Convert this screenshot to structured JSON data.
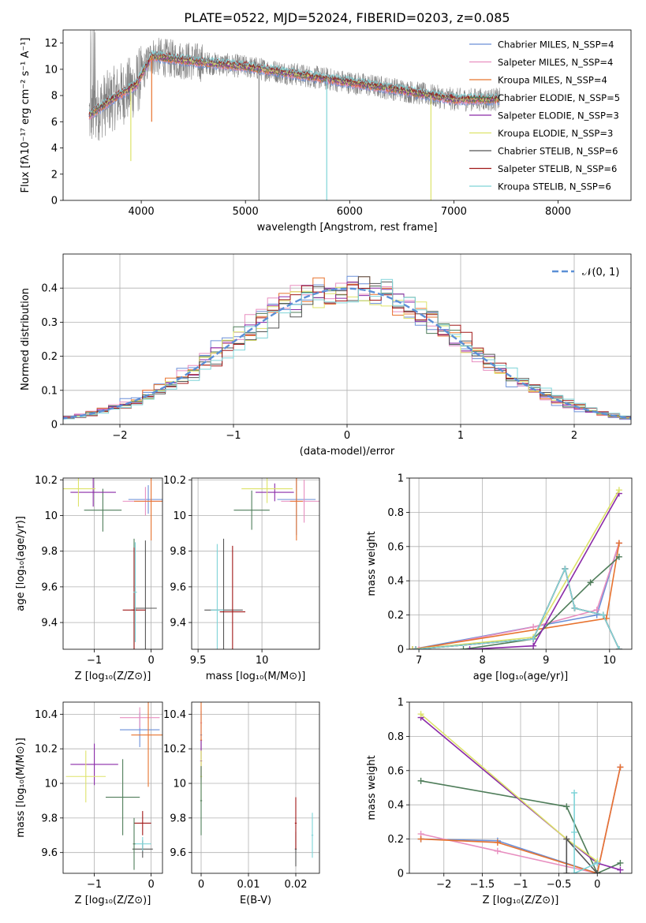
{
  "figure_title": "PLATE=0522, MJD=52024, FIBERID=0203, z=0.085",
  "series_colors": [
    "#6a8fd8",
    "#e88fc0",
    "#e8732f",
    "#4f7d5a",
    "#8a2aa8",
    "#dde36a",
    "#555555",
    "#a01818",
    "#7fd4d8"
  ],
  "chart_data": [
    {
      "id": "spectrum",
      "type": "line",
      "xlabel": "wavelength [Angstrom, rest frame]",
      "ylabel": "Flux [fλ10⁻¹⁷ erg cm⁻² s⁻¹ A⁻¹]",
      "xlim": [
        3250,
        8700
      ],
      "ylim": [
        0,
        13
      ],
      "xticks": [
        4000,
        5000,
        6000,
        7000,
        8000
      ],
      "yticks": [
        0,
        2,
        4,
        6,
        8,
        10,
        12
      ],
      "grid": false,
      "legend": "top-right",
      "series": [
        {
          "name": "Chabrier MILES, N_SSP=4"
        },
        {
          "name": "Salpeter MILES, N_SSP=4"
        },
        {
          "name": "Kroupa MILES, N_SSP=4"
        },
        {
          "name": "Chabrier ELODIE, N_SSP=5"
        },
        {
          "name": "Salpeter ELODIE, N_SSP=3"
        },
        {
          "name": "Kroupa ELODIE, N_SSP=3"
        },
        {
          "name": "Chabrier STELIB, N_SSP=6"
        },
        {
          "name": "Salpeter STELIB, N_SSP=6"
        },
        {
          "name": "Kroupa STELIB, N_SSP=6"
        }
      ],
      "continuum": {
        "x": [
          3500,
          3700,
          3950,
          4100,
          4300,
          4600,
          5000,
          5500,
          6000,
          6500,
          7000,
          7400
        ],
        "y": [
          6.5,
          7.6,
          8.8,
          11.0,
          10.8,
          10.5,
          10.2,
          9.6,
          9.0,
          8.4,
          7.7,
          7.7
        ]
      }
    },
    {
      "id": "residuals",
      "type": "line",
      "xlabel": "(data-model)/error",
      "ylabel": "Normed distribution",
      "xlim": [
        -2.5,
        2.5
      ],
      "ylim": [
        0,
        0.5
      ],
      "xticks": [
        -2,
        -1,
        0,
        1,
        2
      ],
      "yticks": [
        0.0,
        0.1,
        0.2,
        0.3,
        0.4
      ],
      "grid": true,
      "legend": "top-right",
      "gaussian": {
        "name": "𝒩(0, 1)"
      }
    },
    {
      "id": "age_vs_Z",
      "type": "scatter",
      "xlabel": "Z [log₁₀(Z/Z⊙)]",
      "ylabel": "age  [log₁₀(age/yr)]",
      "xlim": [
        -1.55,
        0.2
      ],
      "ylim": [
        9.25,
        10.21
      ],
      "xticks": [
        -1,
        0
      ],
      "yticks": [
        9.4,
        9.6,
        9.8,
        10.0,
        10.2
      ],
      "grid": true,
      "points": [
        {
          "s": 0,
          "x": -0.05,
          "y": 10.09,
          "ex": 0.35,
          "ey": 0.08
        },
        {
          "s": 1,
          "x": -0.1,
          "y": 10.08,
          "ex": 0.4,
          "ey": 0.08
        },
        {
          "s": 2,
          "x": 0.0,
          "y": 10.08,
          "ex": 0.3,
          "ey": 0.22
        },
        {
          "s": 3,
          "x": -0.85,
          "y": 10.03,
          "ex": 0.33,
          "ey": 0.12
        },
        {
          "s": 4,
          "x": -1.02,
          "y": 10.13,
          "ex": 0.4,
          "ey": 0.08
        },
        {
          "s": 5,
          "x": -1.28,
          "y": 10.15,
          "ex": 0.3,
          "ey": 0.1
        },
        {
          "s": 6,
          "x": -0.1,
          "y": 9.48,
          "ex": 0.2,
          "ey": 0.38
        },
        {
          "s": 3,
          "x": -0.3,
          "y": 9.47,
          "ex": 0.05,
          "ey": 0.4
        },
        {
          "s": 7,
          "x": -0.3,
          "y": 9.47,
          "ex": 0.2,
          "ey": 0.35
        },
        {
          "s": 8,
          "x": -0.28,
          "y": 9.57,
          "ex": 0.03,
          "ey": 0.28
        }
      ]
    },
    {
      "id": "age_vs_mass",
      "type": "scatter",
      "xlabel": "mass [log₁₀(M/M⊙)]",
      "ylabel": "",
      "xlim": [
        9.45,
        10.45
      ],
      "ylim": [
        9.25,
        10.21
      ],
      "xticks": [
        9.5,
        10.0
      ],
      "yticks": [
        9.4,
        9.6,
        9.8,
        10.0,
        10.2
      ],
      "grid": true,
      "points": [
        {
          "s": 0,
          "x": 10.27,
          "y": 10.09,
          "ex": 0.15,
          "ey": 0.2
        },
        {
          "s": 1,
          "x": 10.33,
          "y": 10.08,
          "ex": 0.18,
          "ey": 0.12
        },
        {
          "s": 2,
          "x": 10.27,
          "y": 10.08,
          "ex": 0.05,
          "ey": 0.22
        },
        {
          "s": 3,
          "x": 9.92,
          "y": 10.03,
          "ex": 0.14,
          "ey": 0.11
        },
        {
          "s": 4,
          "x": 10.1,
          "y": 10.13,
          "ex": 0.15,
          "ey": 0.05
        },
        {
          "s": 5,
          "x": 10.04,
          "y": 10.15,
          "ex": 0.2,
          "ey": 0.08
        },
        {
          "s": 6,
          "x": 9.7,
          "y": 9.47,
          "ex": 0.15,
          "ey": 0.4
        },
        {
          "s": 7,
          "x": 9.77,
          "y": 9.46,
          "ex": 0.1,
          "ey": 0.37
        },
        {
          "s": 8,
          "x": 9.65,
          "y": 9.47,
          "ex": 0.05,
          "ey": 0.37
        }
      ]
    },
    {
      "id": "mass_weight_vs_age",
      "type": "line",
      "xlabel": "age  [log₁₀(age/yr)]",
      "ylabel": "mass weight",
      "xlim": [
        6.85,
        10.35
      ],
      "ylim": [
        0,
        1
      ],
      "xticks": [
        7,
        8,
        9,
        10
      ],
      "yticks": [
        0.0,
        0.2,
        0.4,
        0.6,
        0.8,
        1.0
      ],
      "grid": true,
      "lines": [
        {
          "s": 0,
          "x": [
            6.9,
            9.8,
            10.15
          ],
          "y": [
            0.0,
            0.2,
            0.62
          ]
        },
        {
          "s": 1,
          "x": [
            7.0,
            8.8,
            9.8,
            10.15
          ],
          "y": [
            0.0,
            0.13,
            0.23,
            0.62
          ]
        },
        {
          "s": 2,
          "x": [
            6.9,
            9.95,
            10.15
          ],
          "y": [
            0.0,
            0.18,
            0.62
          ]
        },
        {
          "s": 3,
          "x": [
            7.7,
            8.8,
            9.7,
            10.15
          ],
          "y": [
            0.0,
            0.06,
            0.39,
            0.54
          ]
        },
        {
          "s": 4,
          "x": [
            7.8,
            8.8,
            10.15
          ],
          "y": [
            0.0,
            0.02,
            0.91
          ]
        },
        {
          "s": 5,
          "x": [
            6.9,
            8.8,
            10.15
          ],
          "y": [
            0.0,
            0.07,
            0.93
          ]
        },
        {
          "s": 6,
          "x": [
            6.95,
            8.8,
            9.3,
            9.45,
            9.9,
            10.15
          ],
          "y": [
            0.0,
            0.06,
            0.47,
            0.24,
            0.2,
            0.0
          ]
        },
        {
          "s": 7,
          "x": [
            6.95,
            8.8,
            9.3,
            9.45,
            9.9,
            10.15
          ],
          "y": [
            0.0,
            0.06,
            0.47,
            0.24,
            0.2,
            0.0
          ]
        },
        {
          "s": 8,
          "x": [
            6.95,
            8.8,
            9.3,
            9.45,
            9.9,
            10.15
          ],
          "y": [
            0.0,
            0.06,
            0.47,
            0.24,
            0.2,
            0.0
          ]
        }
      ]
    },
    {
      "id": "mass_vs_Z",
      "type": "scatter",
      "xlabel": "Z [log₁₀(Z/Z⊙)]",
      "ylabel": "mass [log₁₀(M/M⊙)]",
      "xlim": [
        -1.55,
        0.2
      ],
      "ylim": [
        9.48,
        10.47
      ],
      "xticks": [
        -1,
        0
      ],
      "yticks": [
        9.6,
        9.8,
        10.0,
        10.2,
        10.4
      ],
      "grid": true,
      "points": [
        {
          "s": 0,
          "x": -0.2,
          "y": 10.31,
          "ex": 0.35,
          "ey": 0.1
        },
        {
          "s": 1,
          "x": -0.2,
          "y": 10.38,
          "ex": 0.35,
          "ey": 0.06
        },
        {
          "s": 2,
          "x": -0.05,
          "y": 10.28,
          "ex": 0.3,
          "ey": 0.3
        },
        {
          "s": 3,
          "x": -0.5,
          "y": 9.92,
          "ex": 0.3,
          "ey": 0.22
        },
        {
          "s": 4,
          "x": -1.0,
          "y": 10.11,
          "ex": 0.42,
          "ey": 0.12
        },
        {
          "s": 5,
          "x": -1.15,
          "y": 10.04,
          "ex": 0.35,
          "ey": 0.15
        },
        {
          "s": 6,
          "x": -0.15,
          "y": 9.62,
          "ex": 0.18,
          "ey": 0.05
        },
        {
          "s": 7,
          "x": -0.15,
          "y": 9.77,
          "ex": 0.15,
          "ey": 0.07
        },
        {
          "s": 8,
          "x": -0.15,
          "y": 9.65,
          "ex": 0.15,
          "ey": 0.04
        },
        {
          "s": 3,
          "x": -0.3,
          "y": 9.65,
          "ex": 0.02,
          "ey": 0.15
        }
      ]
    },
    {
      "id": "mass_vs_EBV",
      "type": "scatter",
      "xlabel": "E(B-V)",
      "ylabel": "",
      "xlim": [
        -0.002,
        0.025
      ],
      "ylim": [
        9.48,
        10.47
      ],
      "xticks": [
        0.0,
        0.01,
        0.02
      ],
      "yticks": [
        9.6,
        9.8,
        10.0,
        10.2,
        10.4
      ],
      "grid": true,
      "points": [
        {
          "s": 0,
          "x": 0.0,
          "y": 10.28,
          "ex": 0.0002,
          "ey": 0.14
        },
        {
          "s": 1,
          "x": 0.0,
          "y": 10.35,
          "ex": 0.0002,
          "ey": 0.1
        },
        {
          "s": 2,
          "x": 0.0,
          "y": 10.25,
          "ex": 0.0002,
          "ey": 0.22
        },
        {
          "s": 4,
          "x": 0.0,
          "y": 10.13,
          "ex": 0.0002,
          "ey": 0.12
        },
        {
          "s": 5,
          "x": 0.0,
          "y": 10.04,
          "ex": 0.0002,
          "ey": 0.15
        },
        {
          "s": 3,
          "x": 0.0,
          "y": 9.9,
          "ex": 0.0002,
          "ey": 0.2
        },
        {
          "s": 6,
          "x": 0.02,
          "y": 9.62,
          "ex": 0.0002,
          "ey": 0.1
        },
        {
          "s": 7,
          "x": 0.02,
          "y": 9.77,
          "ex": 0.0002,
          "ey": 0.15
        },
        {
          "s": 8,
          "x": 0.0235,
          "y": 9.7,
          "ex": 0.0002,
          "ey": 0.13
        }
      ]
    },
    {
      "id": "mass_weight_vs_Z",
      "type": "line",
      "xlabel": "Z [log₁₀(Z/Z⊙)]",
      "ylabel": "mass weight",
      "xlim": [
        -2.45,
        0.45
      ],
      "ylim": [
        0,
        1
      ],
      "xticks": [
        -2.0,
        -1.5,
        -1.0,
        -0.5,
        0.0
      ],
      "yticks": [
        0.0,
        0.2,
        0.4,
        0.6,
        0.8,
        1.0
      ],
      "grid": true,
      "lines": [
        {
          "s": 0,
          "x": [
            -2.3,
            -1.3,
            0.0,
            0.3
          ],
          "y": [
            0.2,
            0.19,
            0.0,
            0.62
          ]
        },
        {
          "s": 1,
          "x": [
            -2.3,
            -1.3,
            0.0,
            0.3
          ],
          "y": [
            0.23,
            0.13,
            0.0,
            0.62
          ]
        },
        {
          "s": 2,
          "x": [
            -2.3,
            -1.3,
            0.0,
            0.3
          ],
          "y": [
            0.2,
            0.18,
            0.0,
            0.62
          ]
        },
        {
          "s": 3,
          "x": [
            -2.3,
            -0.4,
            0.0,
            0.3
          ],
          "y": [
            0.54,
            0.39,
            0.0,
            0.06
          ]
        },
        {
          "s": 4,
          "x": [
            -2.3,
            -0.4,
            0.0,
            0.3
          ],
          "y": [
            0.91,
            0.2,
            0.06,
            0.02
          ]
        },
        {
          "s": 5,
          "x": [
            -2.3,
            -0.4,
            0.0
          ],
          "y": [
            0.93,
            0.2,
            0.07
          ]
        },
        {
          "s": 6,
          "x": [
            -0.4,
            -0.4,
            0.0
          ],
          "y": [
            0.0,
            0.2,
            0.0
          ]
        },
        {
          "s": 8,
          "x": [
            -0.3,
            -0.3,
            -0.3,
            0.0
          ],
          "y": [
            0.47,
            0.24,
            0.0,
            0.06
          ]
        }
      ]
    }
  ]
}
